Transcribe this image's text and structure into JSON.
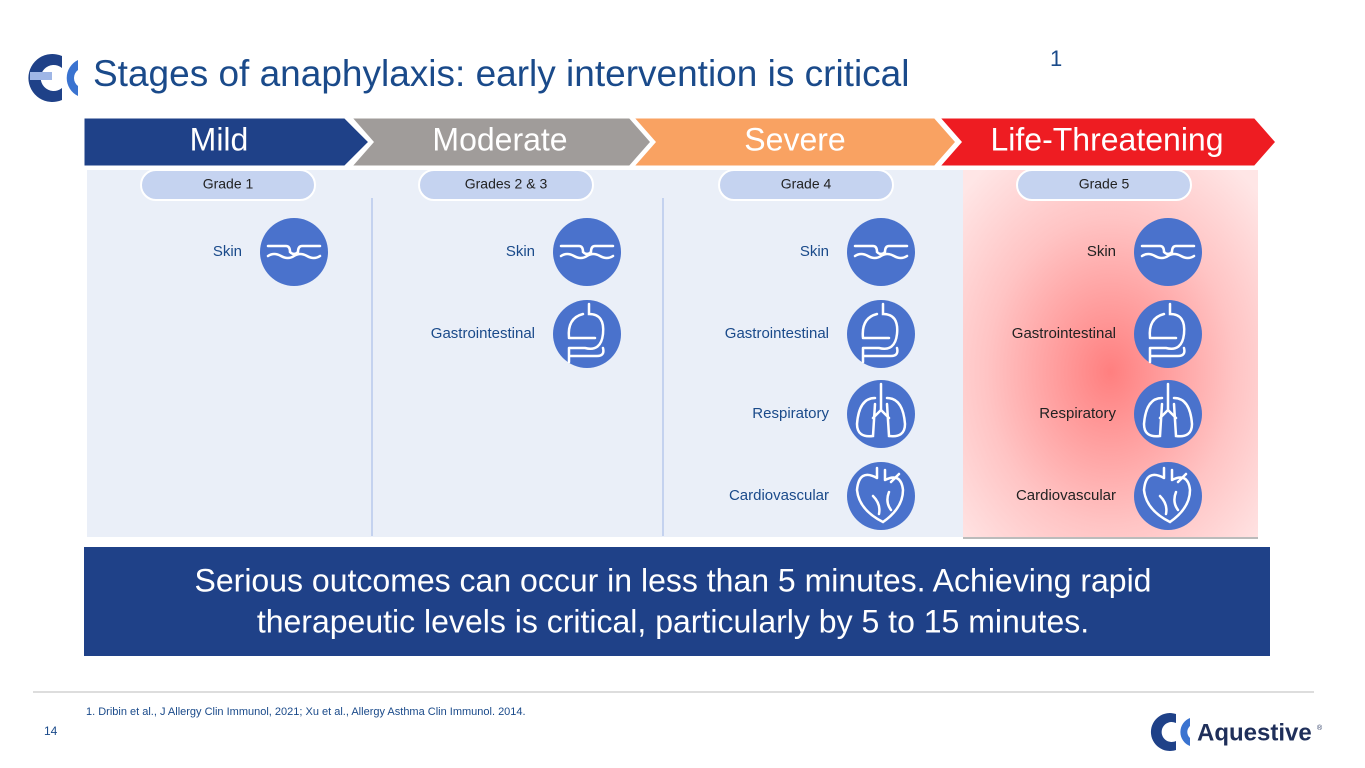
{
  "header": {
    "title": "Stages of anaphylaxis: early intervention is critical",
    "superscript": "1"
  },
  "stages": [
    {
      "name": "Mild",
      "grade": "Grade 1",
      "systems": [
        "Skin"
      ]
    },
    {
      "name": "Moderate",
      "grade": "Grades 2 & 3",
      "systems": [
        "Skin",
        "Gastrointestinal"
      ]
    },
    {
      "name": "Severe",
      "grade": "Grade 4",
      "systems": [
        "Skin",
        "Gastrointestinal",
        "Respiratory",
        "Cardiovascular"
      ]
    },
    {
      "name": "Life-Threatening",
      "grade": "Grade 5",
      "systems": [
        "Skin",
        "Gastrointestinal",
        "Respiratory",
        "Cardiovascular"
      ]
    }
  ],
  "banner": {
    "lines": [
      "Serious outcomes can occur in less than 5 minutes. Achieving rapid",
      "therapeutic levels is critical, particularly by 5 to 15 minutes."
    ]
  },
  "footer": {
    "footnote": "1. Dribin et al., J Allergy Clin Immunol, 2021; Xu et al., Allergy Asthma Clin Immunol. 2014.",
    "page": "14",
    "brand": "Aquestive",
    "registered": "®"
  }
}
